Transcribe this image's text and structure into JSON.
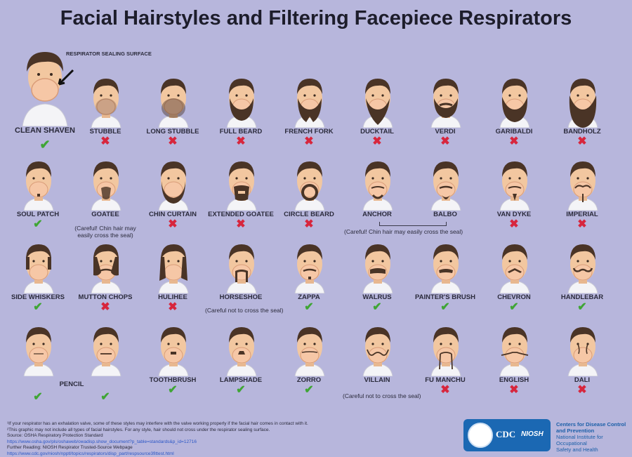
{
  "title": "Facial Hairstyles and Filtering Facepiece Respirators",
  "sealing_label": "RESPIRATOR SEALING SURFACE",
  "reference": {
    "name": "CLEAN SHAVEN",
    "ok": true
  },
  "styles": [
    {
      "name": "STUBBLE",
      "ok": false,
      "hair": "stubble"
    },
    {
      "name": "LONG STUBBLE",
      "ok": false,
      "hair": "longstubble"
    },
    {
      "name": "FULL BEARD",
      "ok": false,
      "hair": "fullbeard"
    },
    {
      "name": "FRENCH FORK",
      "ok": false,
      "hair": "frenchfork"
    },
    {
      "name": "DUCKTAIL",
      "ok": false,
      "hair": "ducktail"
    },
    {
      "name": "VERDI",
      "ok": false,
      "hair": "verdi"
    },
    {
      "name": "GARIBALDI",
      "ok": false,
      "hair": "garibaldi"
    },
    {
      "name": "BANDHOLZ",
      "ok": false,
      "hair": "bandholz"
    },
    {
      "name": "SOUL PATCH",
      "ok": true,
      "hair": "soulpatch"
    },
    {
      "name": "GOATEE",
      "ok": null,
      "hair": "goatee"
    },
    {
      "name": "CHIN CURTAIN",
      "ok": false,
      "hair": "chincurtain"
    },
    {
      "name": "EXTENDED GOATEE",
      "ok": false,
      "hair": "extgoatee"
    },
    {
      "name": "CIRCLE BEARD",
      "ok": false,
      "hair": "circle"
    },
    {
      "name": "ANCHOR",
      "ok": null,
      "hair": "anchor"
    },
    {
      "name": "BALBO",
      "ok": null,
      "hair": "balbo"
    },
    {
      "name": "VAN DYKE",
      "ok": false,
      "hair": "vandyke"
    },
    {
      "name": "IMPERIAL",
      "ok": false,
      "hair": "imperial"
    },
    {
      "name": "SIDE WHISKERS",
      "ok": true,
      "hair": "sidewhiskers"
    },
    {
      "name": "MUTTON CHOPS",
      "ok": false,
      "hair": "mutton"
    },
    {
      "name": "HULIHEE",
      "ok": false,
      "hair": "hulihee"
    },
    {
      "name": "HORSESHOE",
      "ok": null,
      "hair": "horseshoe"
    },
    {
      "name": "ZAPPA",
      "ok": true,
      "hair": "zappa"
    },
    {
      "name": "WALRUS",
      "ok": true,
      "hair": "walrus"
    },
    {
      "name": "PAINTER'S BRUSH",
      "ok": true,
      "hair": "painters"
    },
    {
      "name": "CHEVRON",
      "ok": true,
      "hair": "chevron"
    },
    {
      "name": "HANDLEBAR",
      "ok": true,
      "hair": "handlebar"
    },
    {
      "name": "",
      "ok": true,
      "hair": "pencil"
    },
    {
      "name": "",
      "ok": true,
      "hair": "pencil2"
    },
    {
      "name": "TOOTHBRUSH",
      "ok": true,
      "hair": "toothbrush"
    },
    {
      "name": "LAMPSHADE",
      "ok": true,
      "hair": "lampshade"
    },
    {
      "name": "ZORRO",
      "ok": true,
      "hair": "zorro"
    },
    {
      "name": "VILLAIN",
      "ok": null,
      "hair": "villain"
    },
    {
      "name": "FU MANCHU",
      "ok": false,
      "hair": "fumanchu"
    },
    {
      "name": "ENGLISH",
      "ok": false,
      "hair": "english"
    },
    {
      "name": "DALI",
      "ok": false,
      "hair": "dali"
    }
  ],
  "notes": {
    "goatee": "(Careful! Chin hair may easily cross the seal)",
    "anchor_balbo": "(Careful! Chin hair may easily cross the seal)",
    "horseshoe": "(Careful not to cross the seal)",
    "villain": "(Careful not to cross the seal)",
    "pencil": "PENCIL"
  },
  "footer": {
    "line1": "¹If your respirator has an exhalation valve, some of these styles may interfere with the valve working properly if the facial hair comes in contact with it.",
    "line2": "²This graphic may not include all types of facial hairstyles. For any style, hair should not cross under the respirator sealing surface.",
    "line3": "Source: OSHA Respiratory Protection Standard",
    "line4": "https://www.osha.gov/pls/oshaweb/owadisp.show_document?p_table=standards&p_id=12716",
    "line5": "Further Reading: NIOSH Respirator Trusted-Source Webpage",
    "line6": "https://www.cdc.gov/niosh/npptl/topics/respirators/disp_part/respsource3fittest.html"
  },
  "logo": {
    "cdc": "CDC",
    "niosh": "NIOSH",
    "org1": "Centers for Disease Control",
    "org2": "and Prevention",
    "org3": "National Institute for Occupational",
    "org4": "Safety and Health"
  },
  "colors": {
    "background": "#b7b6dc",
    "ok": "#3fa535",
    "no": "#d7263d",
    "skin": "#f2c7a0",
    "hair": "#4a3426",
    "shirt": "#f4f4f7",
    "mask": "#f6c7a6"
  }
}
